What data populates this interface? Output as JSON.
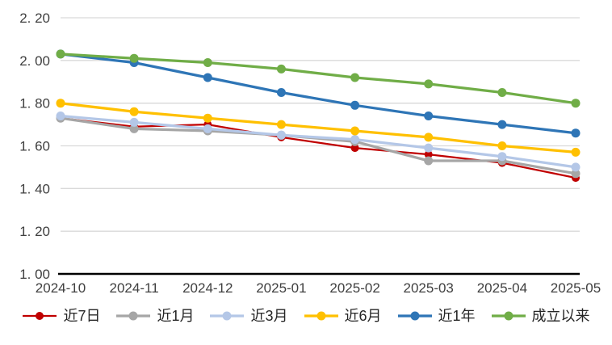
{
  "chart": {
    "background": "#ffffff",
    "grid_color": "#d9d9d9",
    "axis_line_color": "#000000",
    "tick_label_color": "#3f3f3f",
    "y_tick_labels": [
      "2. 20",
      "2. 00",
      "1. 80",
      "1. 60",
      "1. 40",
      "1. 20",
      "1. 00"
    ],
    "y_tick_values": [
      2.2,
      2.0,
      1.8,
      1.6,
      1.4,
      1.2,
      1.0
    ]
  },
  "chart_data": {
    "type": "line",
    "title": "",
    "xlabel": "",
    "ylabel": "",
    "categories": [
      "2024-10",
      "2024-11",
      "2024-12",
      "2025-01",
      "2025-02",
      "2025-03",
      "2025-04",
      "2025-05"
    ],
    "series": [
      {
        "name": "近7日",
        "color": "#c00000",
        "line_width": 2.25,
        "marker_radius": 5,
        "values": [
          1.73,
          1.69,
          1.7,
          1.64,
          1.59,
          1.56,
          1.52,
          1.45
        ]
      },
      {
        "name": "近1月",
        "color": "#a6a6a6",
        "line_width": 3.25,
        "marker_radius": 5.5,
        "values": [
          1.73,
          1.68,
          1.67,
          1.65,
          1.62,
          1.53,
          1.53,
          1.47
        ]
      },
      {
        "name": "近3月",
        "color": "#b4c7e7",
        "line_width": 3.25,
        "marker_radius": 5.5,
        "values": [
          1.74,
          1.71,
          1.68,
          1.65,
          1.63,
          1.59,
          1.55,
          1.5
        ]
      },
      {
        "name": "近6月",
        "color": "#ffc000",
        "line_width": 3.25,
        "marker_radius": 5.5,
        "values": [
          1.8,
          1.76,
          1.73,
          1.7,
          1.67,
          1.64,
          1.6,
          1.57
        ]
      },
      {
        "name": "近1年",
        "color": "#2e75b6",
        "line_width": 3.25,
        "marker_radius": 5.5,
        "values": [
          2.03,
          1.99,
          1.92,
          1.85,
          1.79,
          1.74,
          1.7,
          1.66
        ]
      },
      {
        "name": "成立以来",
        "color": "#70ad47",
        "line_width": 3.25,
        "marker_radius": 5.5,
        "values": [
          2.03,
          2.01,
          1.99,
          1.96,
          1.92,
          1.89,
          1.85,
          1.8
        ]
      }
    ],
    "ylim": [
      1.0,
      2.2
    ],
    "y_tick_step": 0.2,
    "grid": "horizontal-only",
    "legend_position": "bottom"
  }
}
